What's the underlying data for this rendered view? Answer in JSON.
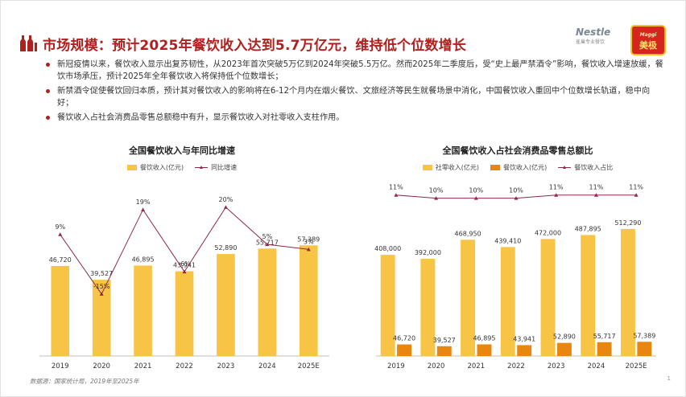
{
  "slide": {
    "title": "市场规模：预计2025年餐饮收入达到5.7万亿元，维持低个位数增长",
    "bullets": [
      "新冠疫情以来，餐饮收入显示出复苏韧性，从2023年首次突破5万亿到2024年突破5.5万亿。然而2025年二季度后，受“史上最严禁酒令”影响，餐饮收入增速放缓，餐饮市场承压，预计2025年全年餐饮收入将保持低个位数增长；",
      "新禁酒令促使餐饮回归本质，预计其对餐饮收入的影响将在6-12个月内在烟火餐饮、文旅经济等民生就餐场景中消化，中国餐饮收入重回中个位数增长轨道，稳中向好；",
      "餐饮收入占社会消费品零售总额稳中有升，显示餐饮收入对社零收入支柱作用。"
    ],
    "source": "数据源：国家统计局，2019年至2025年",
    "page_number": "1",
    "logo": {
      "nestle": "Nestle",
      "nestle_sub": "雀巢专业餐饮",
      "maggi": "美极",
      "maggi_brand": "Maggi"
    }
  },
  "colors": {
    "accent": "#b0201f",
    "bar_yellow": "#f7c445",
    "bar_orange": "#e8860f",
    "line": "#8b2a4a"
  },
  "chart_data": [
    {
      "type": "bar",
      "title": "全国餐饮收入与年同比增速",
      "categories": [
        "2019",
        "2020",
        "2021",
        "2022",
        "2023",
        "2024",
        "2025E"
      ],
      "series": [
        {
          "name": "餐饮收入(亿元)",
          "kind": "bar",
          "values": [
            46720,
            39527,
            46895,
            43941,
            52890,
            55717,
            57389
          ],
          "labels": [
            "46,720",
            "39,527",
            "46,895",
            "43,941",
            "52,890",
            "55,717",
            "57,389"
          ]
        },
        {
          "name": "同比增速",
          "kind": "line",
          "values": [
            9,
            -15,
            19,
            -6,
            20,
            5,
            3
          ],
          "labels": [
            "9%",
            "-15%",
            "19%",
            "-6%",
            "20%",
            "5%",
            "3%"
          ]
        }
      ],
      "ylim_bar": [
        0,
        90000
      ],
      "ylim_line": [
        -40,
        30
      ]
    },
    {
      "type": "bar",
      "title": "全国餐饮收入占社会消费品零售总额比",
      "categories": [
        "2019",
        "2020",
        "2021",
        "2022",
        "2023",
        "2024",
        "2025E"
      ],
      "series": [
        {
          "name": "社零收入(亿元)",
          "kind": "bar",
          "values": [
            408000,
            392000,
            468950,
            439410,
            472000,
            487895,
            512290
          ],
          "labels": [
            "408,000",
            "392,000",
            "468,950",
            "439,410",
            "472,000",
            "487,895",
            "512,290"
          ]
        },
        {
          "name": "餐饮收入(亿元)",
          "kind": "bar",
          "values": [
            46720,
            39527,
            46895,
            43941,
            52890,
            55717,
            57389
          ],
          "labels": [
            "46,720",
            "39,527",
            "46,895",
            "43,941",
            "52,890",
            "55,717",
            "57,389"
          ]
        },
        {
          "name": "餐饮收入占比",
          "kind": "line",
          "values": [
            11,
            10,
            10,
            10,
            11,
            11,
            11
          ],
          "labels": [
            "11%",
            "10%",
            "10%",
            "10%",
            "11%",
            "11%",
            "11%"
          ]
        }
      ],
      "ylim_bar": [
        0,
        700000
      ],
      "ylim_line": [
        -40,
        15
      ]
    }
  ]
}
